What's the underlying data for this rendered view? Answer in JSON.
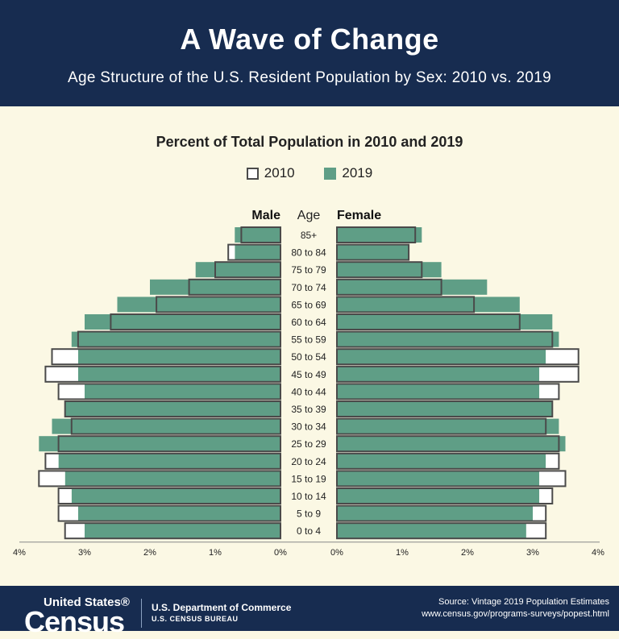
{
  "header": {
    "title": "A Wave of Change",
    "subtitle": "Age Structure of the U.S. Resident Population by Sex: 2010 vs. 2019"
  },
  "chart_data": {
    "type": "bar",
    "orientation": "horizontal-pyramid",
    "title": "Percent of Total Population in 2010 and 2019",
    "left_label": "Male",
    "center_label": "Age",
    "right_label": "Female",
    "categories": [
      "85+",
      "80 to 84",
      "75 to 79",
      "70 to 74",
      "65 to 69",
      "60 to 64",
      "55 to 59",
      "50 to 54",
      "45 to 49",
      "40 to 44",
      "35 to 39",
      "30 to 34",
      "25 to 29",
      "20 to 24",
      "15 to 19",
      "10 to 14",
      "5 to 9",
      "0 to 4"
    ],
    "series": [
      {
        "name": "2010",
        "sex": "Male",
        "values": [
          0.6,
          0.8,
          1.0,
          1.4,
          1.9,
          2.6,
          3.1,
          3.5,
          3.6,
          3.4,
          3.3,
          3.2,
          3.4,
          3.6,
          3.7,
          3.4,
          3.4,
          3.3
        ]
      },
      {
        "name": "2019",
        "sex": "Male",
        "values": [
          0.7,
          0.7,
          1.3,
          2.0,
          2.5,
          3.0,
          3.2,
          3.1,
          3.1,
          3.0,
          3.3,
          3.5,
          3.7,
          3.4,
          3.3,
          3.2,
          3.1,
          3.0
        ]
      },
      {
        "name": "2010",
        "sex": "Female",
        "values": [
          1.2,
          1.1,
          1.3,
          1.6,
          2.1,
          2.8,
          3.3,
          3.7,
          3.7,
          3.4,
          3.3,
          3.2,
          3.4,
          3.4,
          3.5,
          3.3,
          3.2,
          3.2
        ]
      },
      {
        "name": "2019",
        "sex": "Female",
        "values": [
          1.3,
          1.1,
          1.6,
          2.3,
          2.8,
          3.3,
          3.4,
          3.2,
          3.1,
          3.1,
          3.3,
          3.4,
          3.5,
          3.2,
          3.1,
          3.1,
          3.0,
          2.9
        ]
      }
    ],
    "left_ticks": [
      "4%",
      "3%",
      "2%",
      "1%",
      "0%"
    ],
    "right_ticks": [
      "0%",
      "1%",
      "2%",
      "3%",
      "4%"
    ],
    "xlim": [
      0,
      4
    ],
    "grid": false,
    "legend_position": "top-center",
    "colors": {
      "2010": "#ffffff",
      "2019": "#5f9e86",
      "outline": "#4a4a4a"
    }
  },
  "footer": {
    "logo_top": "United States®",
    "logo_main": "Census",
    "dept": "U.S. Department of Commerce",
    "bureau": "U.S. CENSUS BUREAU",
    "source_line1": "Source: Vintage 2019 Population Estimates",
    "source_line2": "www.census.gov/programs-surveys/popest.html"
  }
}
